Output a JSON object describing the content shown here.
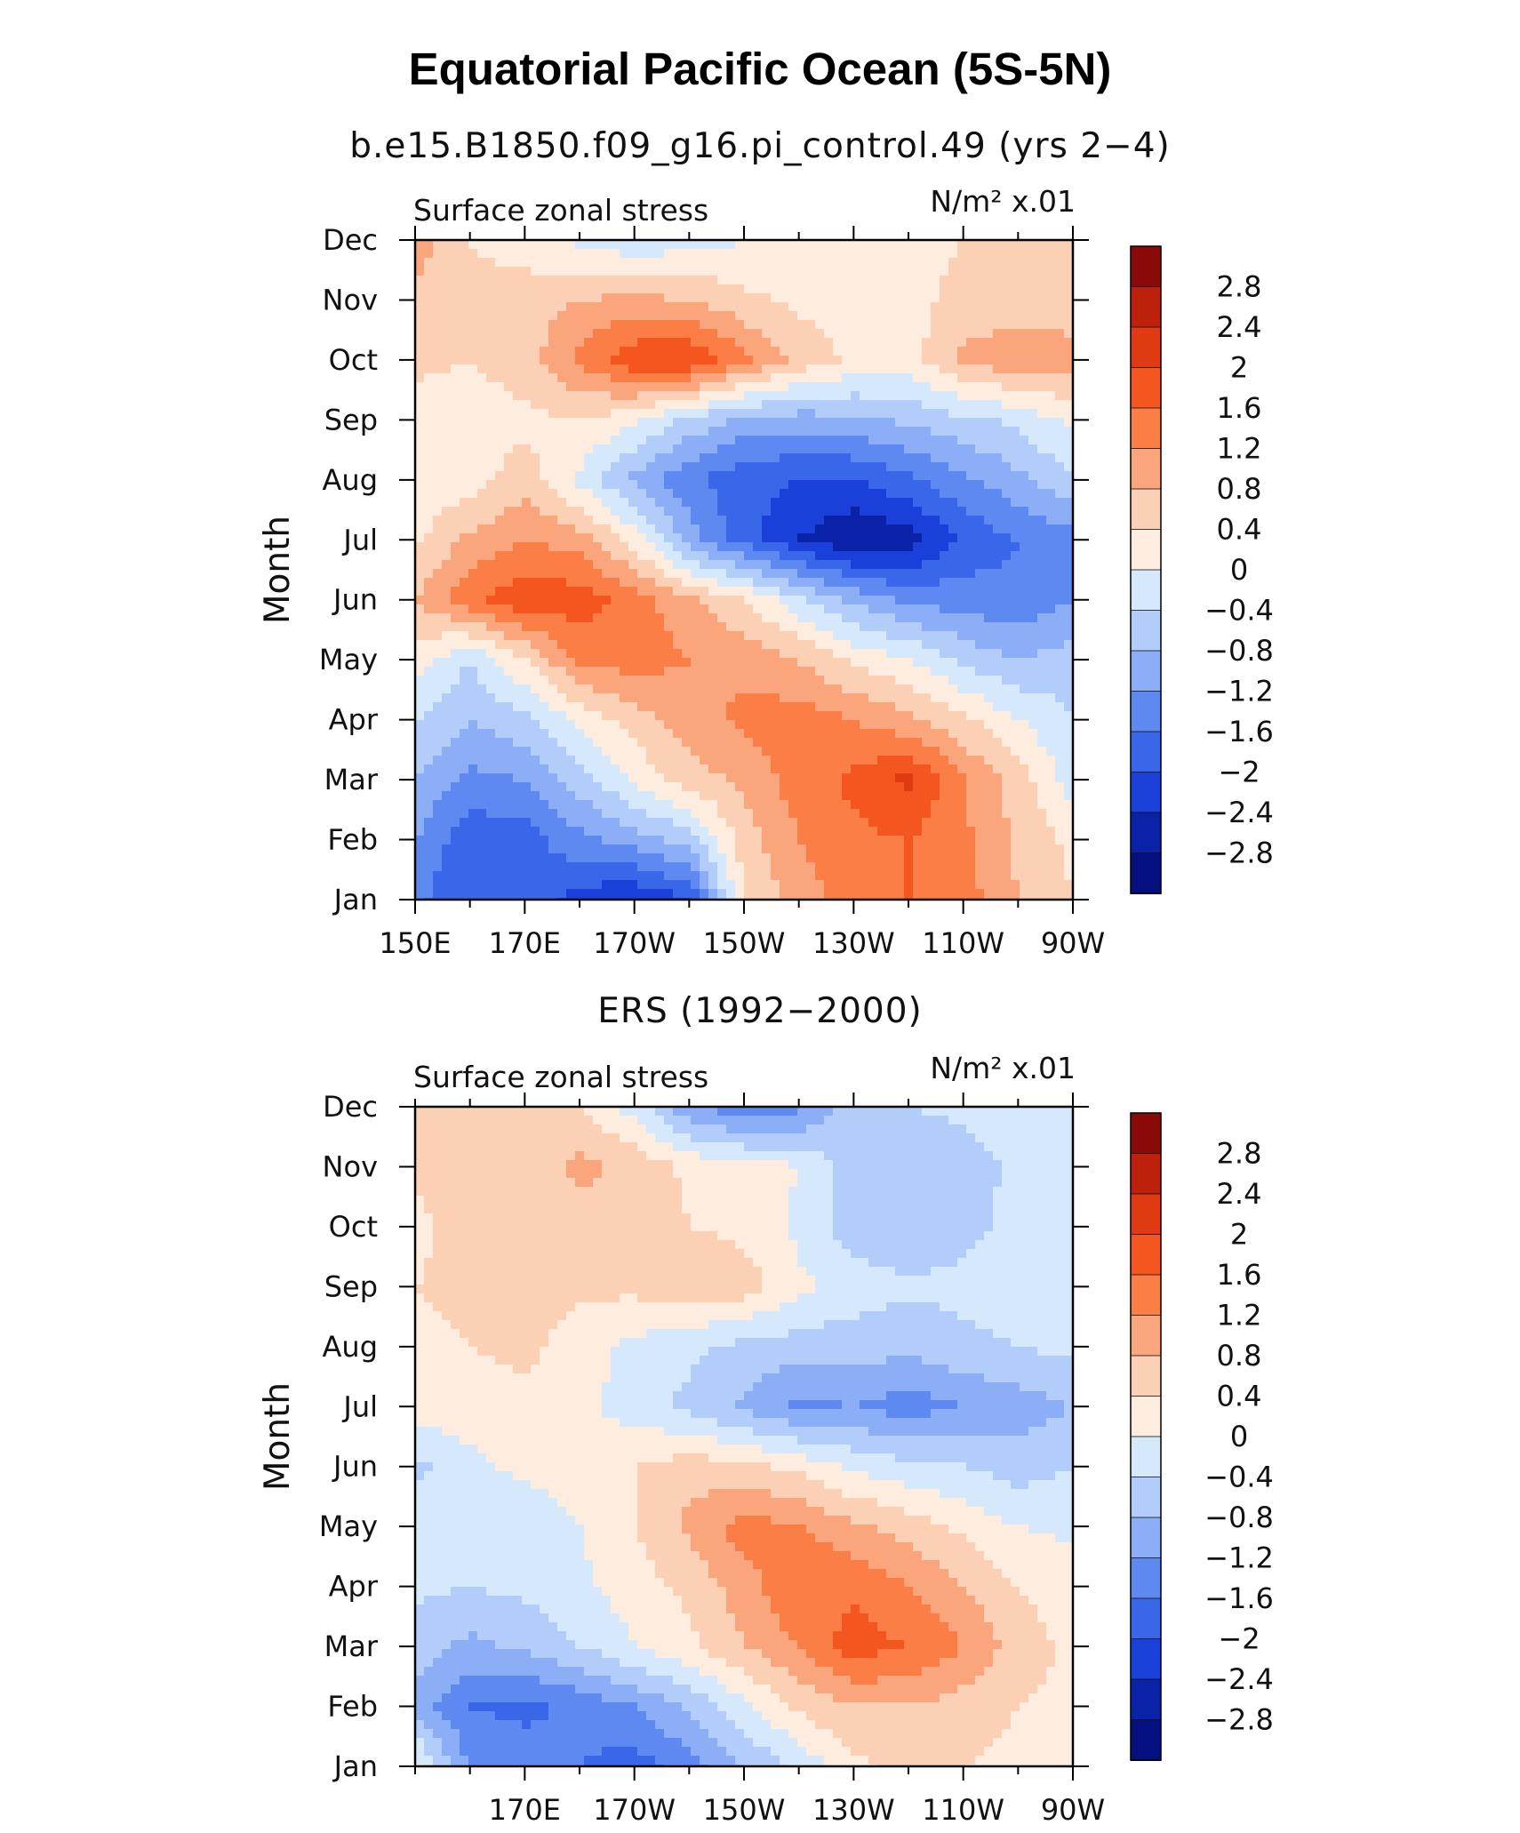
{
  "title": "Equatorial Pacific Ocean (5S-5N)",
  "chart_data": [
    {
      "type": "heatmap",
      "title": "b.e15.B1850.f09_g16.pi_control.49 (yrs 2−4)",
      "left_label": "Surface zonal stress",
      "right_label": "N/m² x.01",
      "xlabel": "",
      "ylabel": "Month",
      "xlim": [
        150,
        270
      ],
      "x_ticks": [
        150,
        170,
        190,
        210,
        230,
        250,
        270
      ],
      "x_tick_labels": [
        "150E",
        "170E",
        "170W",
        "150W",
        "130W",
        "110W",
        "90W"
      ],
      "y_tick_labels": [
        "Jan",
        "Feb",
        "Mar",
        "Apr",
        "May",
        "Jun",
        "Jul",
        "Aug",
        "Sep",
        "Oct",
        "Nov",
        "Dec"
      ],
      "x": [
        150,
        160,
        170,
        180,
        190,
        200,
        210,
        220,
        230,
        240,
        250,
        260,
        270
      ],
      "values": [
        [
          -1.5,
          -2.0,
          -1.6,
          -2.2,
          -2.4,
          -2.0,
          0.4,
          1.0,
          1.4,
          1.6,
          1.4,
          0.8,
          0.4
        ],
        [
          -1.2,
          -1.9,
          -1.8,
          -1.3,
          -1.0,
          -0.6,
          0.6,
          1.2,
          1.5,
          1.6,
          1.3,
          0.7,
          0.3
        ],
        [
          -0.8,
          -1.3,
          -1.2,
          -0.6,
          0.1,
          0.6,
          0.9,
          1.4,
          1.7,
          2.1,
          1.2,
          0.6,
          -0.2
        ],
        [
          -0.4,
          -0.8,
          -0.5,
          0.1,
          0.6,
          1.0,
          1.3,
          1.4,
          1.2,
          0.9,
          0.5,
          0.0,
          -0.4
        ],
        [
          0.2,
          -0.4,
          0.4,
          1.3,
          1.4,
          1.2,
          1.1,
          0.8,
          0.3,
          0.0,
          -0.5,
          -0.8,
          -0.6
        ],
        [
          0.8,
          1.5,
          1.9,
          1.8,
          1.4,
          0.9,
          0.4,
          -0.3,
          -0.9,
          -1.3,
          -1.4,
          -1.5,
          -1.2
        ],
        [
          0.3,
          0.9,
          1.2,
          1.0,
          0.2,
          -1.0,
          -1.8,
          -2.4,
          -2.8,
          -2.6,
          -1.9,
          -1.6,
          -1.4
        ],
        [
          0.1,
          0.2,
          0.6,
          -0.1,
          -0.9,
          -1.5,
          -1.9,
          -2.0,
          -2.0,
          -1.7,
          -1.3,
          -0.9,
          -0.4
        ],
        [
          0.2,
          0.2,
          0.3,
          0.4,
          0.1,
          -0.5,
          -0.9,
          -1.0,
          -0.9,
          -0.7,
          -0.5,
          -0.3,
          0.1
        ],
        [
          0.5,
          0.4,
          0.6,
          1.3,
          1.9,
          2.0,
          1.3,
          0.7,
          0.3,
          0.2,
          0.9,
          1.1,
          1.0
        ],
        [
          0.7,
          0.5,
          0.6,
          0.8,
          0.9,
          0.8,
          0.5,
          0.3,
          0.2,
          0.3,
          0.5,
          0.6,
          0.5
        ],
        [
          1.0,
          0.4,
          0.2,
          -0.1,
          -0.3,
          -0.2,
          0.0,
          0.1,
          0.2,
          0.3,
          0.4,
          0.6,
          0.8
        ]
      ],
      "legend_labels": [
        "2.8",
        "2.4",
        "2",
        "1.6",
        "1.2",
        "0.8",
        "0.4",
        "0",
        "−0.4",
        "−0.8",
        "−1.2",
        "−1.6",
        "−2",
        "−2.4",
        "−2.8"
      ],
      "colors": [
        "#8b0a07",
        "#bd200b",
        "#e03a12",
        "#f5561f",
        "#fb7e47",
        "#fba57d",
        "#fcd0b4",
        "#feedde",
        "#d6e8fb",
        "#b2cdfa",
        "#8baef7",
        "#5e89f1",
        "#3a66ea",
        "#1b3fd9",
        "#0a22a8",
        "#040f80"
      ]
    },
    {
      "type": "heatmap",
      "title": "ERS (1992−2000)",
      "left_label": "Surface zonal stress",
      "right_label": "N/m² x.01",
      "xlabel": "",
      "ylabel": "Month",
      "xlim": [
        150,
        270
      ],
      "x_ticks": [
        170,
        190,
        210,
        230,
        250,
        270
      ],
      "x_tick_labels": [
        "170E",
        "170W",
        "150W",
        "130W",
        "110W",
        "90W"
      ],
      "y_tick_labels": [
        "Jan",
        "Feb",
        "Mar",
        "Apr",
        "May",
        "Jun",
        "Jul",
        "Aug",
        "Sep",
        "Oct",
        "Nov",
        "Dec"
      ],
      "x": [
        150,
        160,
        170,
        180,
        190,
        200,
        210,
        220,
        230,
        240,
        250,
        260,
        270
      ],
      "values": [
        [
          0.2,
          -1.3,
          -1.4,
          -1.6,
          -1.8,
          -1.4,
          -0.8,
          -0.3,
          0.3,
          0.5,
          0.4,
          0.3,
          0.2
        ],
        [
          -1.0,
          -1.6,
          -1.7,
          -1.5,
          -1.2,
          -0.7,
          -0.1,
          0.5,
          0.8,
          0.8,
          0.6,
          0.4,
          0.3
        ],
        [
          -0.6,
          -0.9,
          -0.7,
          -0.4,
          0.0,
          0.3,
          0.8,
          1.2,
          1.8,
          1.6,
          1.2,
          0.6,
          0.3
        ],
        [
          -0.3,
          -0.4,
          -0.3,
          -0.1,
          0.2,
          0.5,
          1.0,
          1.6,
          1.5,
          1.2,
          0.8,
          0.4,
          0.2
        ],
        [
          -0.2,
          -0.1,
          -0.3,
          0.0,
          0.4,
          0.9,
          1.4,
          1.2,
          0.9,
          0.6,
          0.3,
          0.0,
          -0.1
        ],
        [
          -0.5,
          -0.1,
          0.1,
          0.2,
          0.4,
          0.6,
          0.5,
          0.3,
          -0.1,
          -0.3,
          -0.4,
          -0.6,
          -0.4
        ],
        [
          0.2,
          0.2,
          0.3,
          0.1,
          -0.2,
          -0.5,
          -0.9,
          -1.3,
          -1.2,
          -1.4,
          -1.2,
          -1.0,
          -0.8
        ],
        [
          0.3,
          0.4,
          0.5,
          0.2,
          -0.1,
          -0.3,
          -0.5,
          -0.6,
          -0.6,
          -0.7,
          -0.5,
          -0.4,
          -0.3
        ],
        [
          0.4,
          0.5,
          0.6,
          0.5,
          0.5,
          0.7,
          0.6,
          0.1,
          -0.2,
          -0.3,
          -0.3,
          -0.2,
          -0.1
        ],
        [
          0.3,
          0.6,
          0.5,
          0.6,
          0.8,
          0.4,
          0.3,
          -0.1,
          -0.6,
          -0.8,
          -0.5,
          -0.3,
          -0.2
        ],
        [
          0.5,
          0.4,
          0.6,
          0.9,
          0.7,
          0.3,
          0.2,
          0.0,
          -0.6,
          -0.7,
          -0.6,
          -0.3,
          -0.2
        ],
        [
          0.6,
          0.8,
          0.5,
          0.4,
          -0.2,
          -1.1,
          -1.6,
          -1.3,
          -0.6,
          -0.4,
          -0.3,
          -0.2,
          -0.1
        ]
      ],
      "legend_labels": [
        "2.8",
        "2.4",
        "2",
        "1.6",
        "1.2",
        "0.8",
        "0.4",
        "0",
        "−0.4",
        "−0.8",
        "−1.2",
        "−1.6",
        "−2",
        "−2.4",
        "−2.8"
      ],
      "colors": [
        "#8b0a07",
        "#bd200b",
        "#e03a12",
        "#f5561f",
        "#fb7e47",
        "#fba57d",
        "#fcd0b4",
        "#feedde",
        "#d6e8fb",
        "#b2cdfa",
        "#8baef7",
        "#5e89f1",
        "#3a66ea",
        "#1b3fd9",
        "#0a22a8",
        "#040f80"
      ]
    }
  ]
}
